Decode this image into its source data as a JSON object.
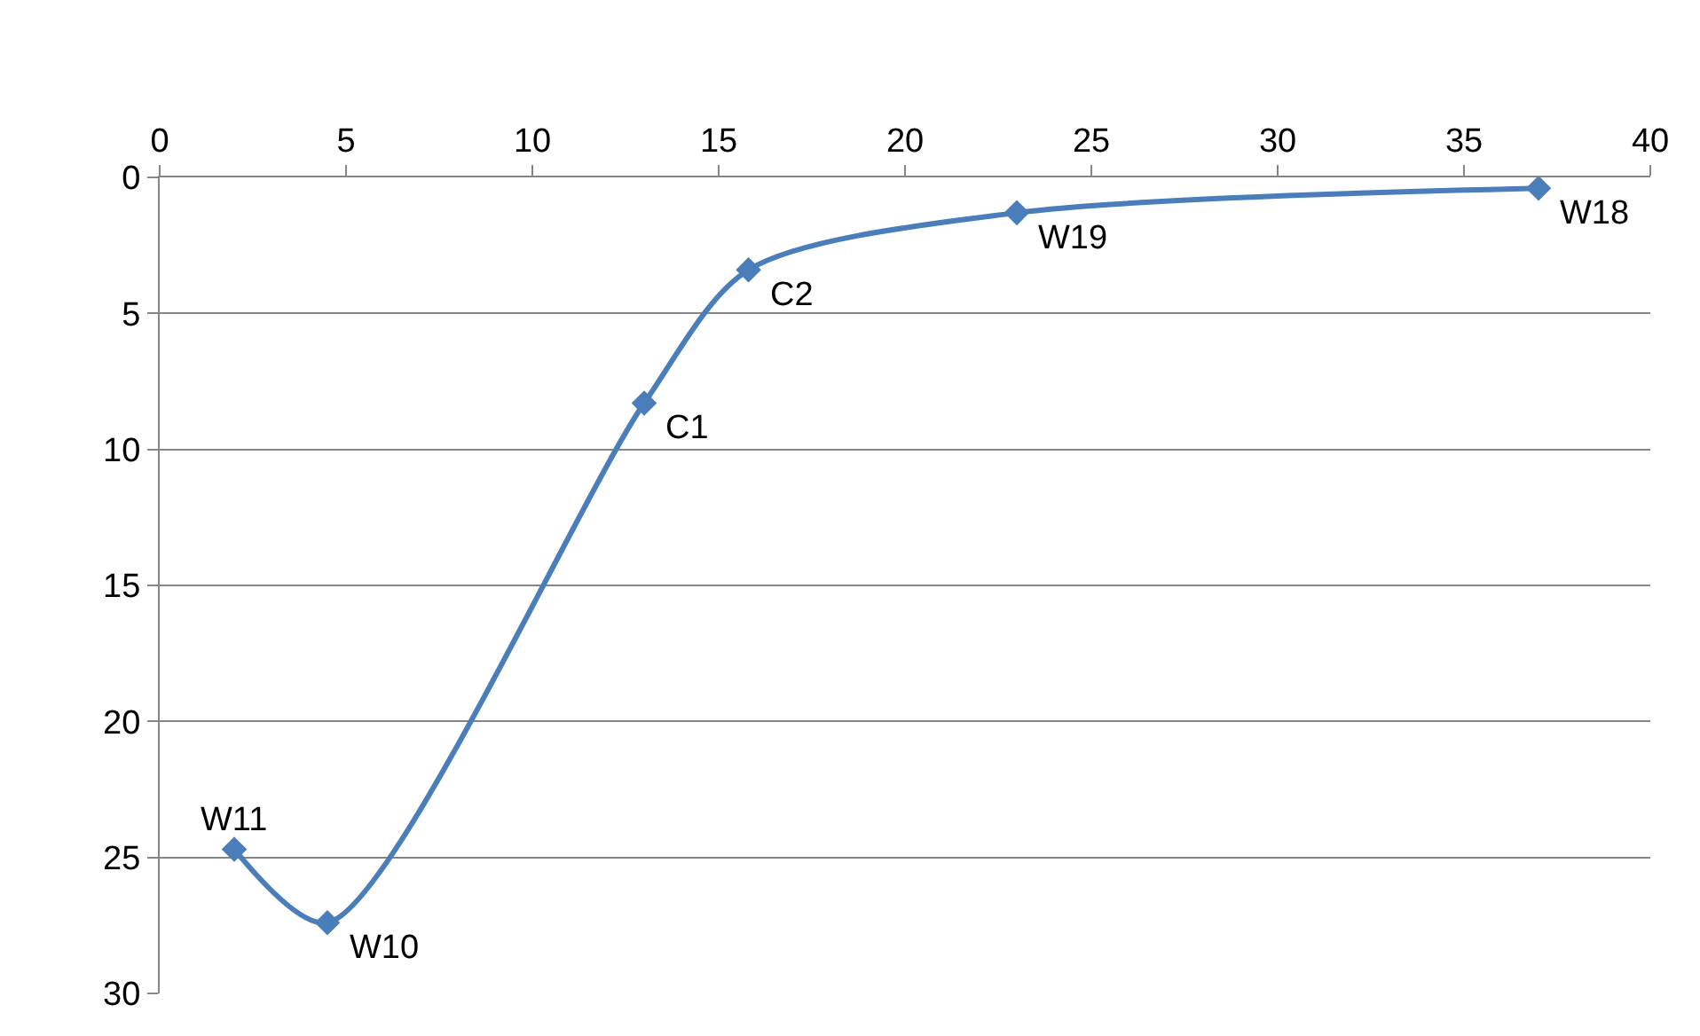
{
  "chart_data": {
    "type": "line",
    "x": [
      2.0,
      4.5,
      13.0,
      15.8,
      23.0,
      37.0
    ],
    "series": [
      {
        "color": "#4a7ebb",
        "values": [
          24.7,
          27.4,
          8.3,
          3.4,
          1.3,
          0.4
        ]
      }
    ],
    "xlim": [
      0,
      40
    ],
    "xticks": [
      0,
      5,
      10,
      15,
      20,
      25,
      30,
      35,
      40
    ],
    "ylim": [
      30,
      0
    ],
    "yticks": [
      0,
      5,
      10,
      15,
      20,
      25,
      30
    ],
    "grid": "y",
    "marker": "diamond",
    "line_style": "solid",
    "annotations": [
      {
        "text": "W11",
        "x": 2.0,
        "y": 24.7
      },
      {
        "text": "W10",
        "x": 4.5,
        "y": 27.4
      },
      {
        "text": "C1",
        "x": 13.0,
        "y": 8.3
      },
      {
        "text": "C2",
        "x": 15.8,
        "y": 3.4
      },
      {
        "text": "W19",
        "x": 23.0,
        "y": 1.3
      },
      {
        "text": "W18",
        "x": 37.0,
        "y": 0.4
      }
    ]
  }
}
